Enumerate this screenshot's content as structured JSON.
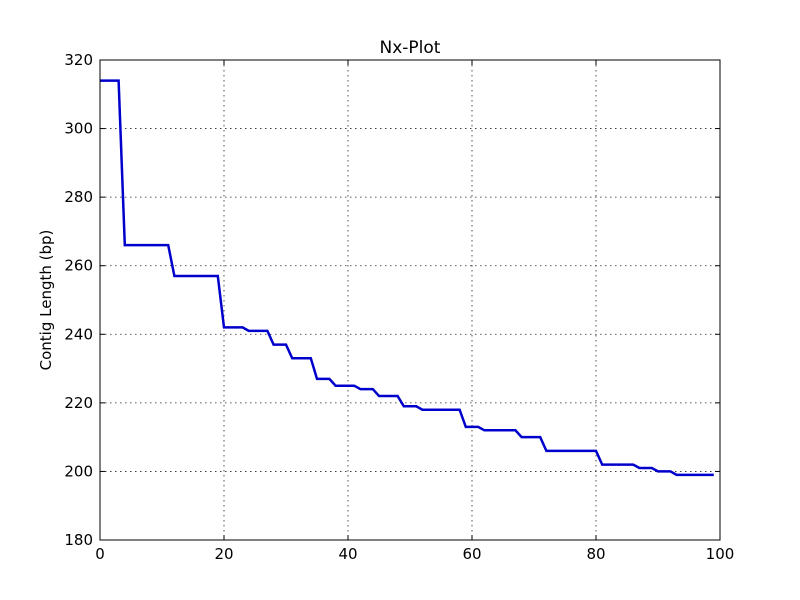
{
  "chart_data": {
    "type": "line",
    "title": "Nx-Plot",
    "xlabel": "",
    "ylabel": "Contig Length (bp)",
    "xlim": [
      0,
      100
    ],
    "ylim": [
      180,
      320
    ],
    "xticks": [
      0,
      20,
      40,
      60,
      80,
      100
    ],
    "yticks": [
      180,
      200,
      220,
      240,
      260,
      280,
      300,
      320
    ],
    "grid": true,
    "series": [
      {
        "color": "#0000cc",
        "points": [
          [
            0,
            314
          ],
          [
            3,
            314
          ],
          [
            4,
            266
          ],
          [
            11,
            266
          ],
          [
            12,
            257
          ],
          [
            19,
            257
          ],
          [
            20,
            242
          ],
          [
            23,
            242
          ],
          [
            24,
            241
          ],
          [
            27,
            241
          ],
          [
            28,
            237
          ],
          [
            30,
            237
          ],
          [
            31,
            233
          ],
          [
            34,
            233
          ],
          [
            35,
            227
          ],
          [
            37,
            227
          ],
          [
            38,
            225
          ],
          [
            41,
            225
          ],
          [
            42,
            224
          ],
          [
            44,
            224
          ],
          [
            45,
            222
          ],
          [
            48,
            222
          ],
          [
            49,
            219
          ],
          [
            51,
            219
          ],
          [
            52,
            218
          ],
          [
            58,
            218
          ],
          [
            59,
            213
          ],
          [
            61,
            213
          ],
          [
            62,
            212
          ],
          [
            67,
            212
          ],
          [
            68,
            210
          ],
          [
            71,
            210
          ],
          [
            72,
            206
          ],
          [
            80,
            206
          ],
          [
            81,
            202
          ],
          [
            86,
            202
          ],
          [
            87,
            201
          ],
          [
            89,
            201
          ],
          [
            90,
            200
          ],
          [
            92,
            200
          ],
          [
            93,
            199
          ],
          [
            99,
            199
          ]
        ]
      }
    ]
  }
}
